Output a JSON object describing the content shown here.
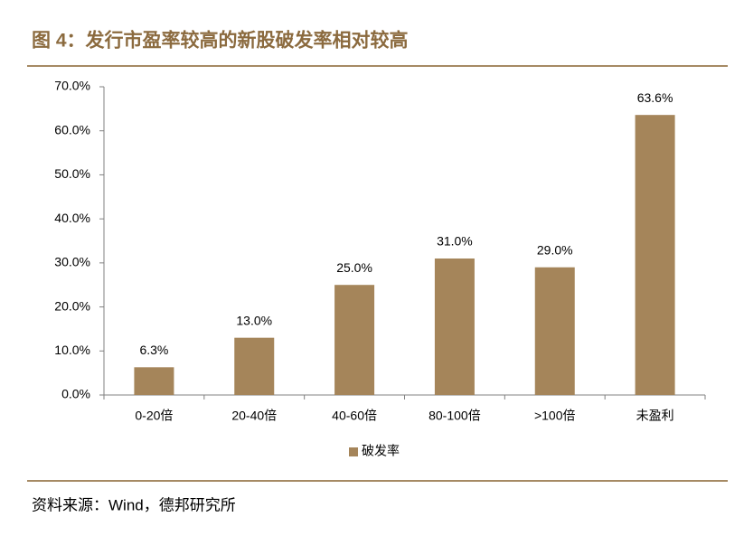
{
  "chart_data": {
    "type": "bar",
    "title": "图 4：发行市盈率较高的新股破发率相对较高",
    "categories": [
      "0-20倍",
      "20-40倍",
      "40-60倍",
      "80-100倍",
      ">100倍",
      "未盈利"
    ],
    "series": [
      {
        "name": "破发率",
        "color": "#a5855a",
        "values": [
          6.3,
          13.0,
          25.0,
          31.0,
          29.0,
          63.6
        ],
        "value_labels": [
          "6.3%",
          "13.0%",
          "25.0%",
          "31.0%",
          "29.0%",
          "63.6%"
        ]
      }
    ],
    "ylim": [
      0,
      70
    ],
    "yticks": [
      {
        "value": 0,
        "label": "0.0%"
      },
      {
        "value": 10,
        "label": "10.0%"
      },
      {
        "value": 20,
        "label": "20.0%"
      },
      {
        "value": 30,
        "label": "30.0%"
      },
      {
        "value": 40,
        "label": "40.0%"
      },
      {
        "value": 50,
        "label": "50.0%"
      },
      {
        "value": 60,
        "label": "60.0%"
      },
      {
        "value": 70,
        "label": "70.0%"
      }
    ],
    "legend": "bottom",
    "source": "资料来源：Wind，德邦研究所"
  }
}
